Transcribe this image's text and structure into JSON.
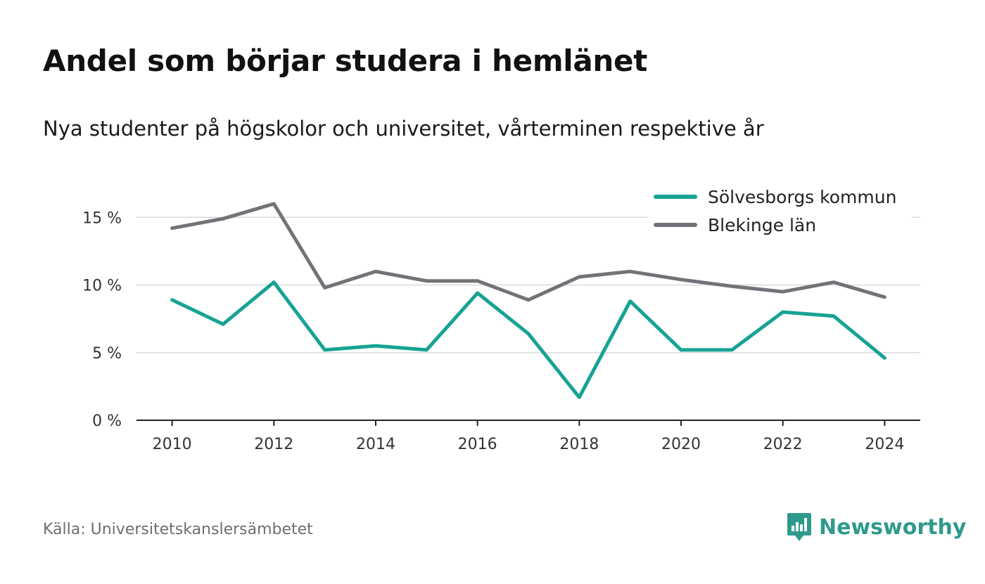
{
  "title": "Andel som börjar studera i hemlänet",
  "subtitle": "Nya studenter på högskolor och universitet, vårterminen respektive år",
  "source": "Källa: Universitetskanslersämbetet",
  "brand": {
    "name": "Newsworthy",
    "icon": "newsworthy-logo-icon",
    "color": "#2e9a8c"
  },
  "chart_data": {
    "type": "line",
    "x": [
      2010,
      2011,
      2012,
      2013,
      2014,
      2015,
      2016,
      2017,
      2018,
      2019,
      2020,
      2021,
      2022,
      2023,
      2024
    ],
    "xticks": [
      "2010",
      "2012",
      "2014",
      "2016",
      "2018",
      "2020",
      "2022",
      "2024"
    ],
    "xlim": [
      2009.3,
      2024.7
    ],
    "yticks": [
      "0 %",
      "5 %",
      "10 %",
      "15 %"
    ],
    "ylim": [
      0,
      16
    ],
    "grid": true,
    "legend": "top-right",
    "series": [
      {
        "name": "Sölvesborgs kommun",
        "color": "#16a394",
        "values": [
          8.9,
          7.1,
          10.2,
          5.2,
          5.5,
          5.2,
          9.4,
          6.4,
          1.7,
          8.8,
          5.2,
          5.2,
          8.0,
          7.7,
          4.6
        ]
      },
      {
        "name": "Blekinge län",
        "color": "#737278",
        "values": [
          14.2,
          14.9,
          16.0,
          9.8,
          11.0,
          10.3,
          10.3,
          8.9,
          10.6,
          11.0,
          10.4,
          9.9,
          9.5,
          10.2,
          9.1
        ]
      }
    ]
  }
}
